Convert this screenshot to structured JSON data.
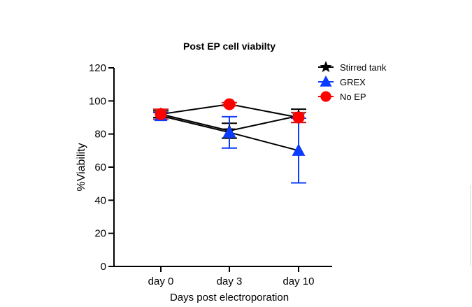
{
  "chart_data": {
    "type": "line",
    "title": "Post EP cell viabilty",
    "xlabel": "Days post electroporation",
    "ylabel": "%Viability",
    "categories": [
      "day 0",
      "day 3",
      "day 10"
    ],
    "ylim": [
      0,
      120
    ],
    "yticks": [
      "0",
      "20",
      "40",
      "60",
      "80",
      "100",
      "120"
    ],
    "grid": false,
    "legend_position": "top-right",
    "series": [
      {
        "name": "Stirred tank",
        "marker": "star",
        "color": "#000000",
        "values": [
          92,
          82,
          91
        ],
        "errors": [
          2,
          4.5,
          4
        ]
      },
      {
        "name": "GREX",
        "marker": "triangle",
        "color": "#0a3cff",
        "values": [
          91,
          81,
          70
        ],
        "errors": [
          2,
          9.5,
          19.5
        ]
      },
      {
        "name": "No EP",
        "marker": "circle",
        "color": "#ff0000",
        "values": [
          92,
          98,
          90
        ],
        "errors": [
          3,
          1,
          3
        ]
      }
    ]
  }
}
